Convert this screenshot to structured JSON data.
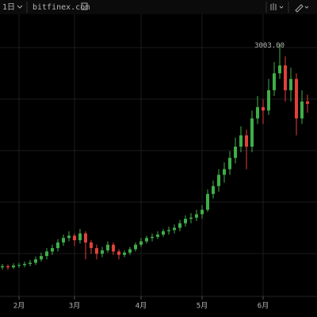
{
  "chart_data": {
    "type": "candlestick",
    "interval": "1日",
    "source": "bitfinex.com",
    "up_color": "#3fae49",
    "down_color": "#e0413a",
    "ylim": [
      800,
      3400
    ],
    "categories": [
      null,
      null,
      null,
      "2月",
      null,
      null,
      null,
      null,
      null,
      null,
      null,
      null,
      null,
      "3月",
      null,
      null,
      null,
      null,
      null,
      null,
      null,
      null,
      null,
      null,
      null,
      "4月",
      null,
      null,
      null,
      null,
      null,
      null,
      null,
      null,
      null,
      null,
      "5月",
      null,
      null,
      null,
      null,
      null,
      null,
      null,
      null,
      null,
      null,
      "6月",
      null,
      null,
      null,
      null,
      null,
      null,
      null,
      null
    ],
    "open": [
      1030,
      1040,
      1030,
      1045,
      1050,
      1060,
      1070,
      1100,
      1130,
      1170,
      1200,
      1250,
      1290,
      1310,
      1270,
      1330,
      1250,
      1200,
      1150,
      1180,
      1230,
      1170,
      1140,
      1160,
      1190,
      1230,
      1260,
      1290,
      1300,
      1320,
      1350,
      1360,
      1380,
      1420,
      1460,
      1470,
      1500,
      1540,
      1680,
      1750,
      1850,
      1900,
      2000,
      2100,
      2200,
      2100,
      2350,
      2450,
      2420,
      2600,
      2750,
      2820,
      2600,
      2700,
      2350,
      2500
    ],
    "high": [
      1060,
      1055,
      1065,
      1070,
      1080,
      1095,
      1125,
      1160,
      1200,
      1230,
      1280,
      1320,
      1350,
      1330,
      1370,
      1350,
      1270,
      1230,
      1210,
      1260,
      1250,
      1190,
      1180,
      1210,
      1250,
      1290,
      1310,
      1330,
      1350,
      1370,
      1390,
      1410,
      1450,
      1490,
      1510,
      1540,
      1580,
      1720,
      1800,
      1900,
      1960,
      2060,
      2180,
      2280,
      2250,
      2420,
      2550,
      2520,
      2700,
      2850,
      3003,
      2900,
      2800,
      2750,
      2600,
      2560
    ],
    "low": [
      1010,
      1010,
      1015,
      1025,
      1030,
      1040,
      1050,
      1080,
      1100,
      1140,
      1170,
      1220,
      1260,
      1220,
      1240,
      1100,
      1150,
      1100,
      1120,
      1160,
      1140,
      1100,
      1120,
      1140,
      1170,
      1210,
      1240,
      1260,
      1280,
      1300,
      1320,
      1330,
      1350,
      1390,
      1420,
      1440,
      1460,
      1520,
      1640,
      1700,
      1780,
      1850,
      1950,
      2050,
      1900,
      2050,
      2300,
      2300,
      2380,
      2550,
      2700,
      2500,
      2500,
      2200,
      2300,
      2400
    ],
    "close": [
      1040,
      1030,
      1045,
      1050,
      1060,
      1070,
      1100,
      1130,
      1170,
      1200,
      1250,
      1290,
      1310,
      1270,
      1330,
      1250,
      1200,
      1150,
      1180,
      1230,
      1170,
      1140,
      1160,
      1190,
      1230,
      1260,
      1290,
      1300,
      1320,
      1350,
      1360,
      1380,
      1420,
      1460,
      1470,
      1500,
      1540,
      1680,
      1750,
      1850,
      1900,
      2000,
      2100,
      2200,
      2100,
      2350,
      2450,
      2420,
      2600,
      2750,
      2820,
      2600,
      2700,
      2350,
      2500,
      2480
    ],
    "annotations": [
      {
        "label": "3003.00",
        "value": 3003
      }
    ]
  }
}
